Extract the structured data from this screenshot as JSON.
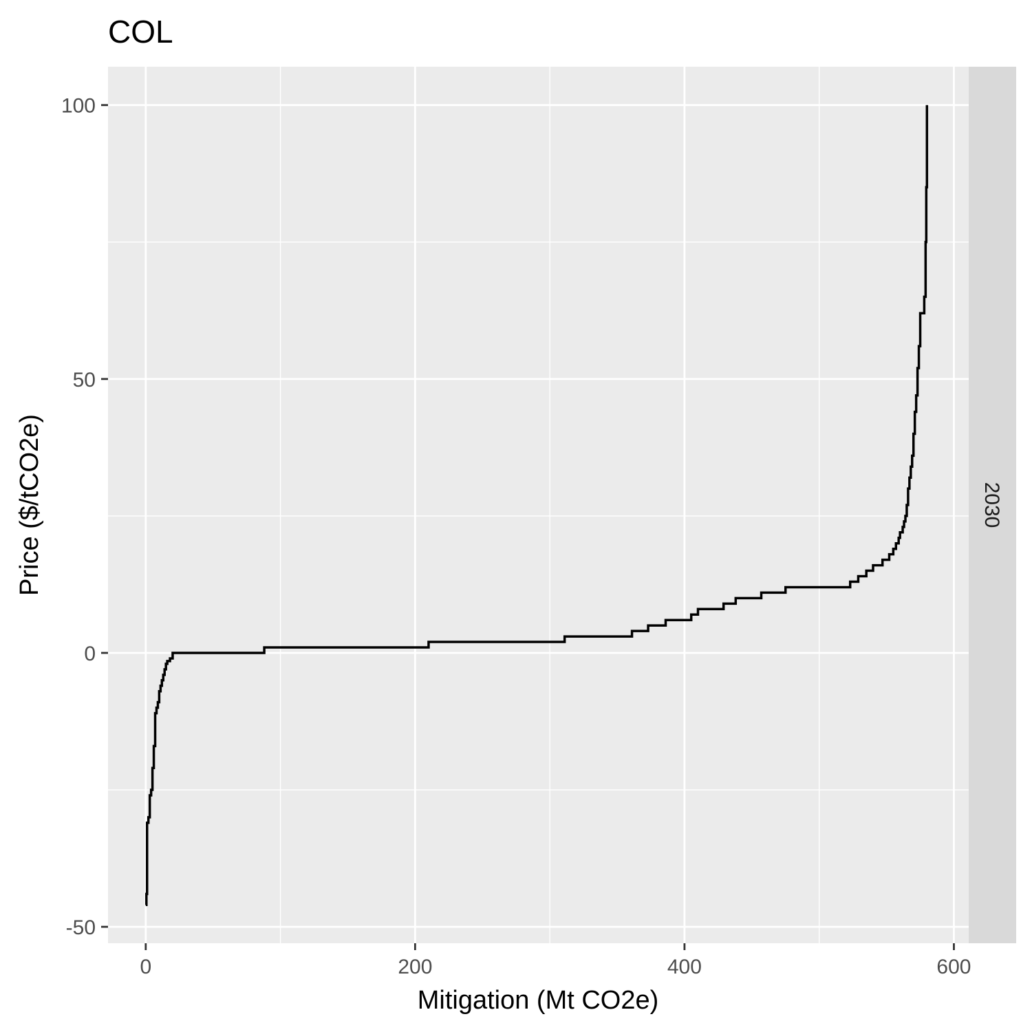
{
  "chart_data": {
    "type": "line",
    "title": "COL",
    "xlabel": "Mitigation (Mt CO2e)",
    "ylabel": "Price ($/tCO2e)",
    "facet_label": "2030",
    "xlim": [
      -28,
      611
    ],
    "ylim": [
      -53,
      107
    ],
    "x_ticks": [
      0,
      200,
      400,
      600
    ],
    "x_tick_labels": [
      "0",
      "200",
      "400",
      "600"
    ],
    "y_ticks": [
      -50,
      0,
      50,
      100
    ],
    "y_tick_labels": [
      "-50",
      "0",
      "50",
      "100"
    ],
    "x_minor": [
      100,
      300,
      500
    ],
    "y_minor": [
      -25,
      25,
      75
    ],
    "series": [
      {
        "name": "2030",
        "step": true,
        "points": [
          [
            0,
            -46
          ],
          [
            0.5,
            -44
          ],
          [
            1,
            -31
          ],
          [
            2,
            -30
          ],
          [
            3,
            -26
          ],
          [
            4,
            -25
          ],
          [
            5,
            -21
          ],
          [
            6,
            -17
          ],
          [
            7,
            -11
          ],
          [
            8,
            -10
          ],
          [
            9,
            -9
          ],
          [
            10,
            -7
          ],
          [
            11,
            -6
          ],
          [
            12,
            -5
          ],
          [
            13,
            -4
          ],
          [
            14,
            -3
          ],
          [
            15,
            -2
          ],
          [
            16,
            -1.5
          ],
          [
            18,
            -1
          ],
          [
            20,
            0
          ],
          [
            88,
            1
          ],
          [
            210,
            2
          ],
          [
            311,
            3
          ],
          [
            361,
            4
          ],
          [
            373,
            5
          ],
          [
            386,
            6
          ],
          [
            405,
            7
          ],
          [
            410,
            8
          ],
          [
            429,
            9
          ],
          [
            438,
            10
          ],
          [
            457,
            11
          ],
          [
            475,
            12
          ],
          [
            523,
            13
          ],
          [
            529,
            14
          ],
          [
            535,
            15
          ],
          [
            540,
            16
          ],
          [
            547,
            17
          ],
          [
            552,
            18
          ],
          [
            555,
            19
          ],
          [
            557,
            20
          ],
          [
            559,
            21
          ],
          [
            560,
            22
          ],
          [
            562,
            23
          ],
          [
            563,
            24
          ],
          [
            564,
            25
          ],
          [
            565,
            27
          ],
          [
            566,
            30
          ],
          [
            567,
            32
          ],
          [
            568,
            34
          ],
          [
            569,
            36
          ],
          [
            570,
            40
          ],
          [
            571,
            44
          ],
          [
            572,
            47
          ],
          [
            573,
            52
          ],
          [
            574,
            56
          ],
          [
            575,
            62
          ],
          [
            578,
            65
          ],
          [
            579,
            75
          ],
          [
            579.5,
            85
          ],
          [
            580,
            100
          ]
        ]
      }
    ]
  },
  "colors": {
    "panel_bg": "#ebebeb",
    "grid": "#ffffff",
    "strip_bg": "#d9d9d9",
    "line": "#000000",
    "tick": "#333333"
  }
}
